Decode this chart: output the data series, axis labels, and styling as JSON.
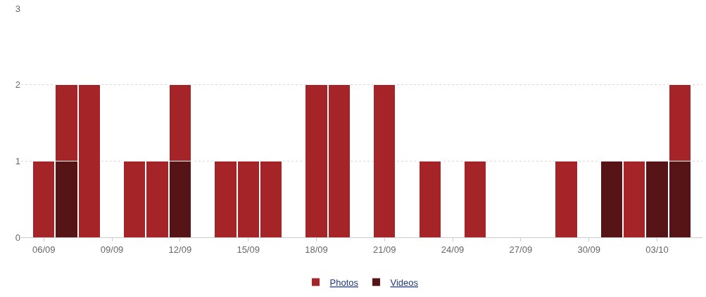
{
  "chart_data": {
    "type": "bar",
    "stacked": true,
    "x": [
      "--09-06",
      "--09-07",
      "--09-08",
      "--09-10",
      "--09-11",
      "--09-12",
      "--09-14",
      "--09-15",
      "--09-16",
      "--09-18",
      "--09-19",
      "--09-21",
      "--09-23",
      "--09-25",
      "--09-29",
      "--10-01",
      "--10-02",
      "--10-03",
      "--10-04"
    ],
    "series": [
      {
        "name": "Videos",
        "color": "#561417",
        "values": [
          null,
          1,
          null,
          null,
          null,
          1,
          null,
          null,
          null,
          null,
          null,
          null,
          null,
          null,
          null,
          1,
          null,
          1,
          1
        ]
      },
      {
        "name": "Photos",
        "color": "#a52428",
        "values": [
          1,
          1,
          2,
          1,
          1,
          1,
          1,
          1,
          1,
          2,
          2,
          2,
          1,
          1,
          1,
          null,
          1,
          null,
          1
        ]
      }
    ],
    "xlim": [
      "--09-05",
      "--10-05"
    ],
    "xticks": [
      {
        "value": "--09-06",
        "label": "06/09"
      },
      {
        "value": "--09-09",
        "label": "09/09"
      },
      {
        "value": "--09-12",
        "label": "12/09"
      },
      {
        "value": "--09-15",
        "label": "15/09"
      },
      {
        "value": "--09-18",
        "label": "18/09"
      },
      {
        "value": "--09-21",
        "label": "21/09"
      },
      {
        "value": "--09-24",
        "label": "24/09"
      },
      {
        "value": "--09-27",
        "label": "27/09"
      },
      {
        "value": "--09-30",
        "label": "30/09"
      },
      {
        "value": "--10-03",
        "label": "03/10"
      }
    ],
    "ylim": [
      0,
      3
    ],
    "yticks": [
      0,
      1,
      2,
      3
    ],
    "grid": "y",
    "legend": "bottom"
  }
}
